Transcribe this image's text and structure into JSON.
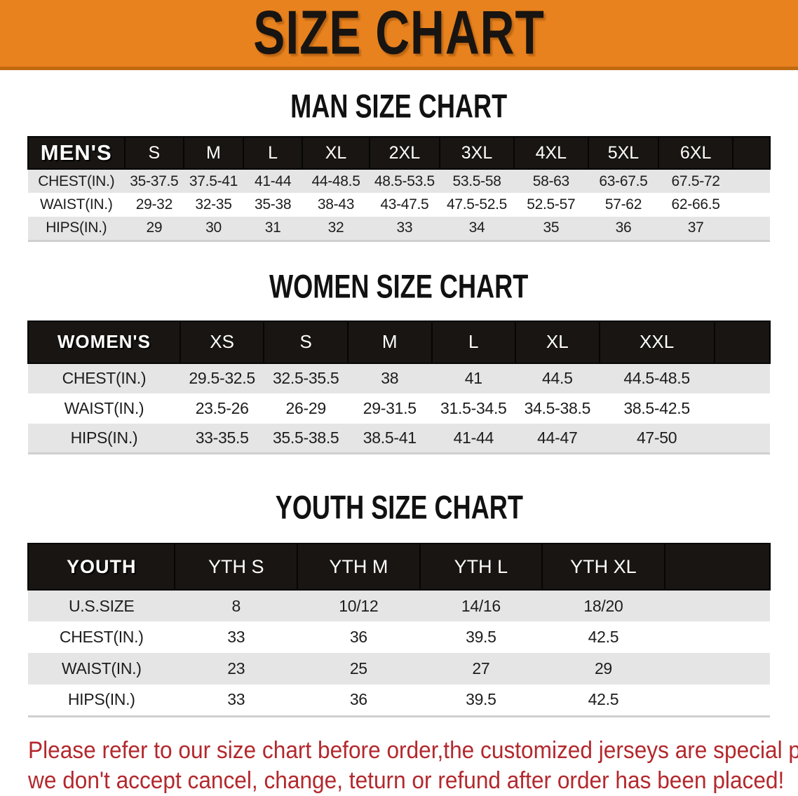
{
  "banner": {
    "title": "SIZE CHART"
  },
  "colors": {
    "banner_bg": "#e8821e",
    "banner_border": "#c06a10",
    "banner_text": "#181411",
    "header_bar_bg": "#181512",
    "header_bar_text": "#ffffff",
    "row_alt_bg": "#e5e5e5",
    "notice_text": "#b3282d"
  },
  "sections": [
    {
      "heading": "MAN SIZE CHART",
      "header_label": "MEN'S",
      "columns": [
        "S",
        "M",
        "L",
        "XL",
        "2XL",
        "3XL",
        "4XL",
        "5XL",
        "6XL"
      ],
      "rows": [
        {
          "label": "CHEST(IN.)",
          "values": [
            "35-37.5",
            "37.5-41",
            "41-44",
            "44-48.5",
            "48.5-53.5",
            "53.5-58",
            "58-63",
            "63-67.5",
            "67.5-72"
          ]
        },
        {
          "label": "WAIST(IN.)",
          "values": [
            "29-32",
            "32-35",
            "35-38",
            "38-43",
            "43-47.5",
            "47.5-52.5",
            "52.5-57",
            "57-62",
            "62-66.5"
          ]
        },
        {
          "label": "HIPS(IN.)",
          "values": [
            "29",
            "30",
            "31",
            "32",
            "33",
            "34",
            "35",
            "36",
            "37"
          ]
        }
      ]
    },
    {
      "heading": "WOMEN SIZE CHART",
      "header_label": "WOMEN'S",
      "columns": [
        "XS",
        "S",
        "M",
        "L",
        "XL",
        "XXL"
      ],
      "rows": [
        {
          "label": "CHEST(IN.)",
          "values": [
            "29.5-32.5",
            "32.5-35.5",
            "38",
            "41",
            "44.5",
            "44.5-48.5"
          ]
        },
        {
          "label": "WAIST(IN.)",
          "values": [
            "23.5-26",
            "26-29",
            "29-31.5",
            "31.5-34.5",
            "34.5-38.5",
            "38.5-42.5"
          ]
        },
        {
          "label": "HIPS(IN.)",
          "values": [
            "33-35.5",
            "35.5-38.5",
            "38.5-41",
            "41-44",
            "44-47",
            "47-50"
          ]
        }
      ]
    },
    {
      "heading": "YOUTH SIZE CHART",
      "header_label": "YOUTH",
      "columns": [
        "YTH S",
        "YTH M",
        "YTH L",
        "YTH XL"
      ],
      "rows": [
        {
          "label": "U.S.SIZE",
          "values": [
            "8",
            "10/12",
            "14/16",
            "18/20"
          ]
        },
        {
          "label": "CHEST(IN.)",
          "values": [
            "33",
            "36",
            "39.5",
            "42.5"
          ]
        },
        {
          "label": "WAIST(IN.)",
          "values": [
            "23",
            "25",
            "27",
            "29"
          ]
        },
        {
          "label": "HIPS(IN.)",
          "values": [
            "33",
            "36",
            "39.5",
            "42.5"
          ]
        }
      ]
    }
  ],
  "footer": {
    "line1": "Please refer to our size chart before order,the customized jerseys are special products,",
    "line2": "we don't accept cancel, change, teturn or refund after order has been placed!"
  }
}
